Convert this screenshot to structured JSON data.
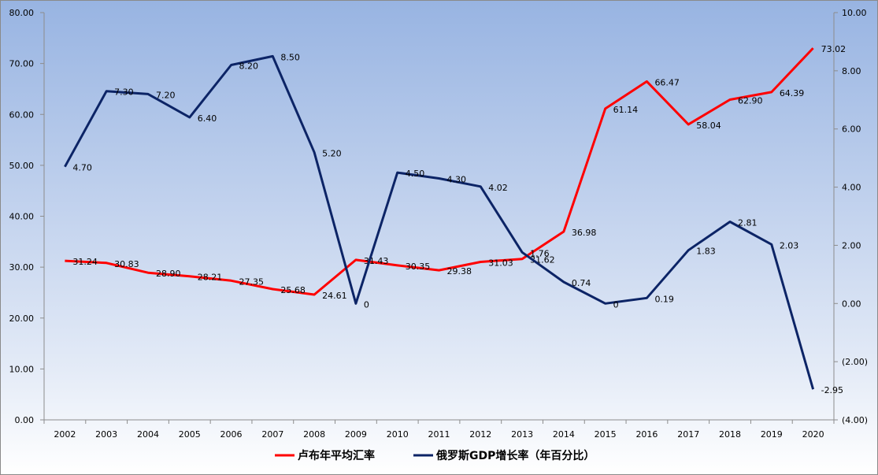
{
  "chart_data": {
    "type": "line",
    "categories": [
      "2002",
      "2003",
      "2004",
      "2005",
      "2006",
      "2007",
      "2008",
      "2009",
      "2010",
      "2011",
      "2012",
      "2013",
      "2014",
      "2015",
      "2016",
      "2017",
      "2018",
      "2019",
      "2020"
    ],
    "series": [
      {
        "name": "卢布年平均汇率",
        "axis": "left",
        "color": "#ff0000",
        "values": [
          31.24,
          30.83,
          28.9,
          28.21,
          27.35,
          25.68,
          24.61,
          31.43,
          30.35,
          29.38,
          31.03,
          31.62,
          36.98,
          61.14,
          66.47,
          58.04,
          62.9,
          64.39,
          73.02
        ],
        "labels": [
          "31.24",
          "30.83",
          "28.90",
          "28.21",
          "27.35",
          "25.68",
          "24.61",
          "31.43",
          "30.35",
          "29.38",
          "31.03",
          "31.62",
          "36.98",
          "61.14",
          "66.47",
          "58.04",
          "62.90",
          "64.39",
          "73.02"
        ]
      },
      {
        "name": "俄罗斯GDP增长率（年百分比）",
        "axis": "right",
        "color": "#0c2466",
        "values": [
          4.7,
          7.3,
          7.2,
          6.4,
          8.2,
          8.5,
          5.2,
          0,
          4.5,
          4.3,
          4.02,
          1.76,
          0.74,
          0,
          0.19,
          1.83,
          2.81,
          2.03,
          -2.95
        ],
        "labels": [
          "4.70",
          "7.30",
          "7.20",
          "6.40",
          "8.20",
          "8.50",
          "5.20",
          "0",
          "4.50",
          "4.30",
          "4.02",
          "1.76",
          "0.74",
          "0",
          "0.19",
          "1.83",
          "2.81",
          "2.03",
          "-2.95"
        ]
      }
    ],
    "left_axis": {
      "ylim": [
        0,
        80
      ],
      "ticks": [
        "0.00",
        "10.00",
        "20.00",
        "30.00",
        "40.00",
        "50.00",
        "60.00",
        "70.00",
        "80.00"
      ]
    },
    "right_axis": {
      "ylim": [
        -4,
        10
      ],
      "ticks": [
        "(4.00)",
        "(2.00)",
        "0.00",
        "2.00",
        "4.00",
        "6.00",
        "8.00",
        "10.00"
      ],
      "negative_color": "#ff0000"
    },
    "grid": false,
    "legend_position": "bottom"
  }
}
